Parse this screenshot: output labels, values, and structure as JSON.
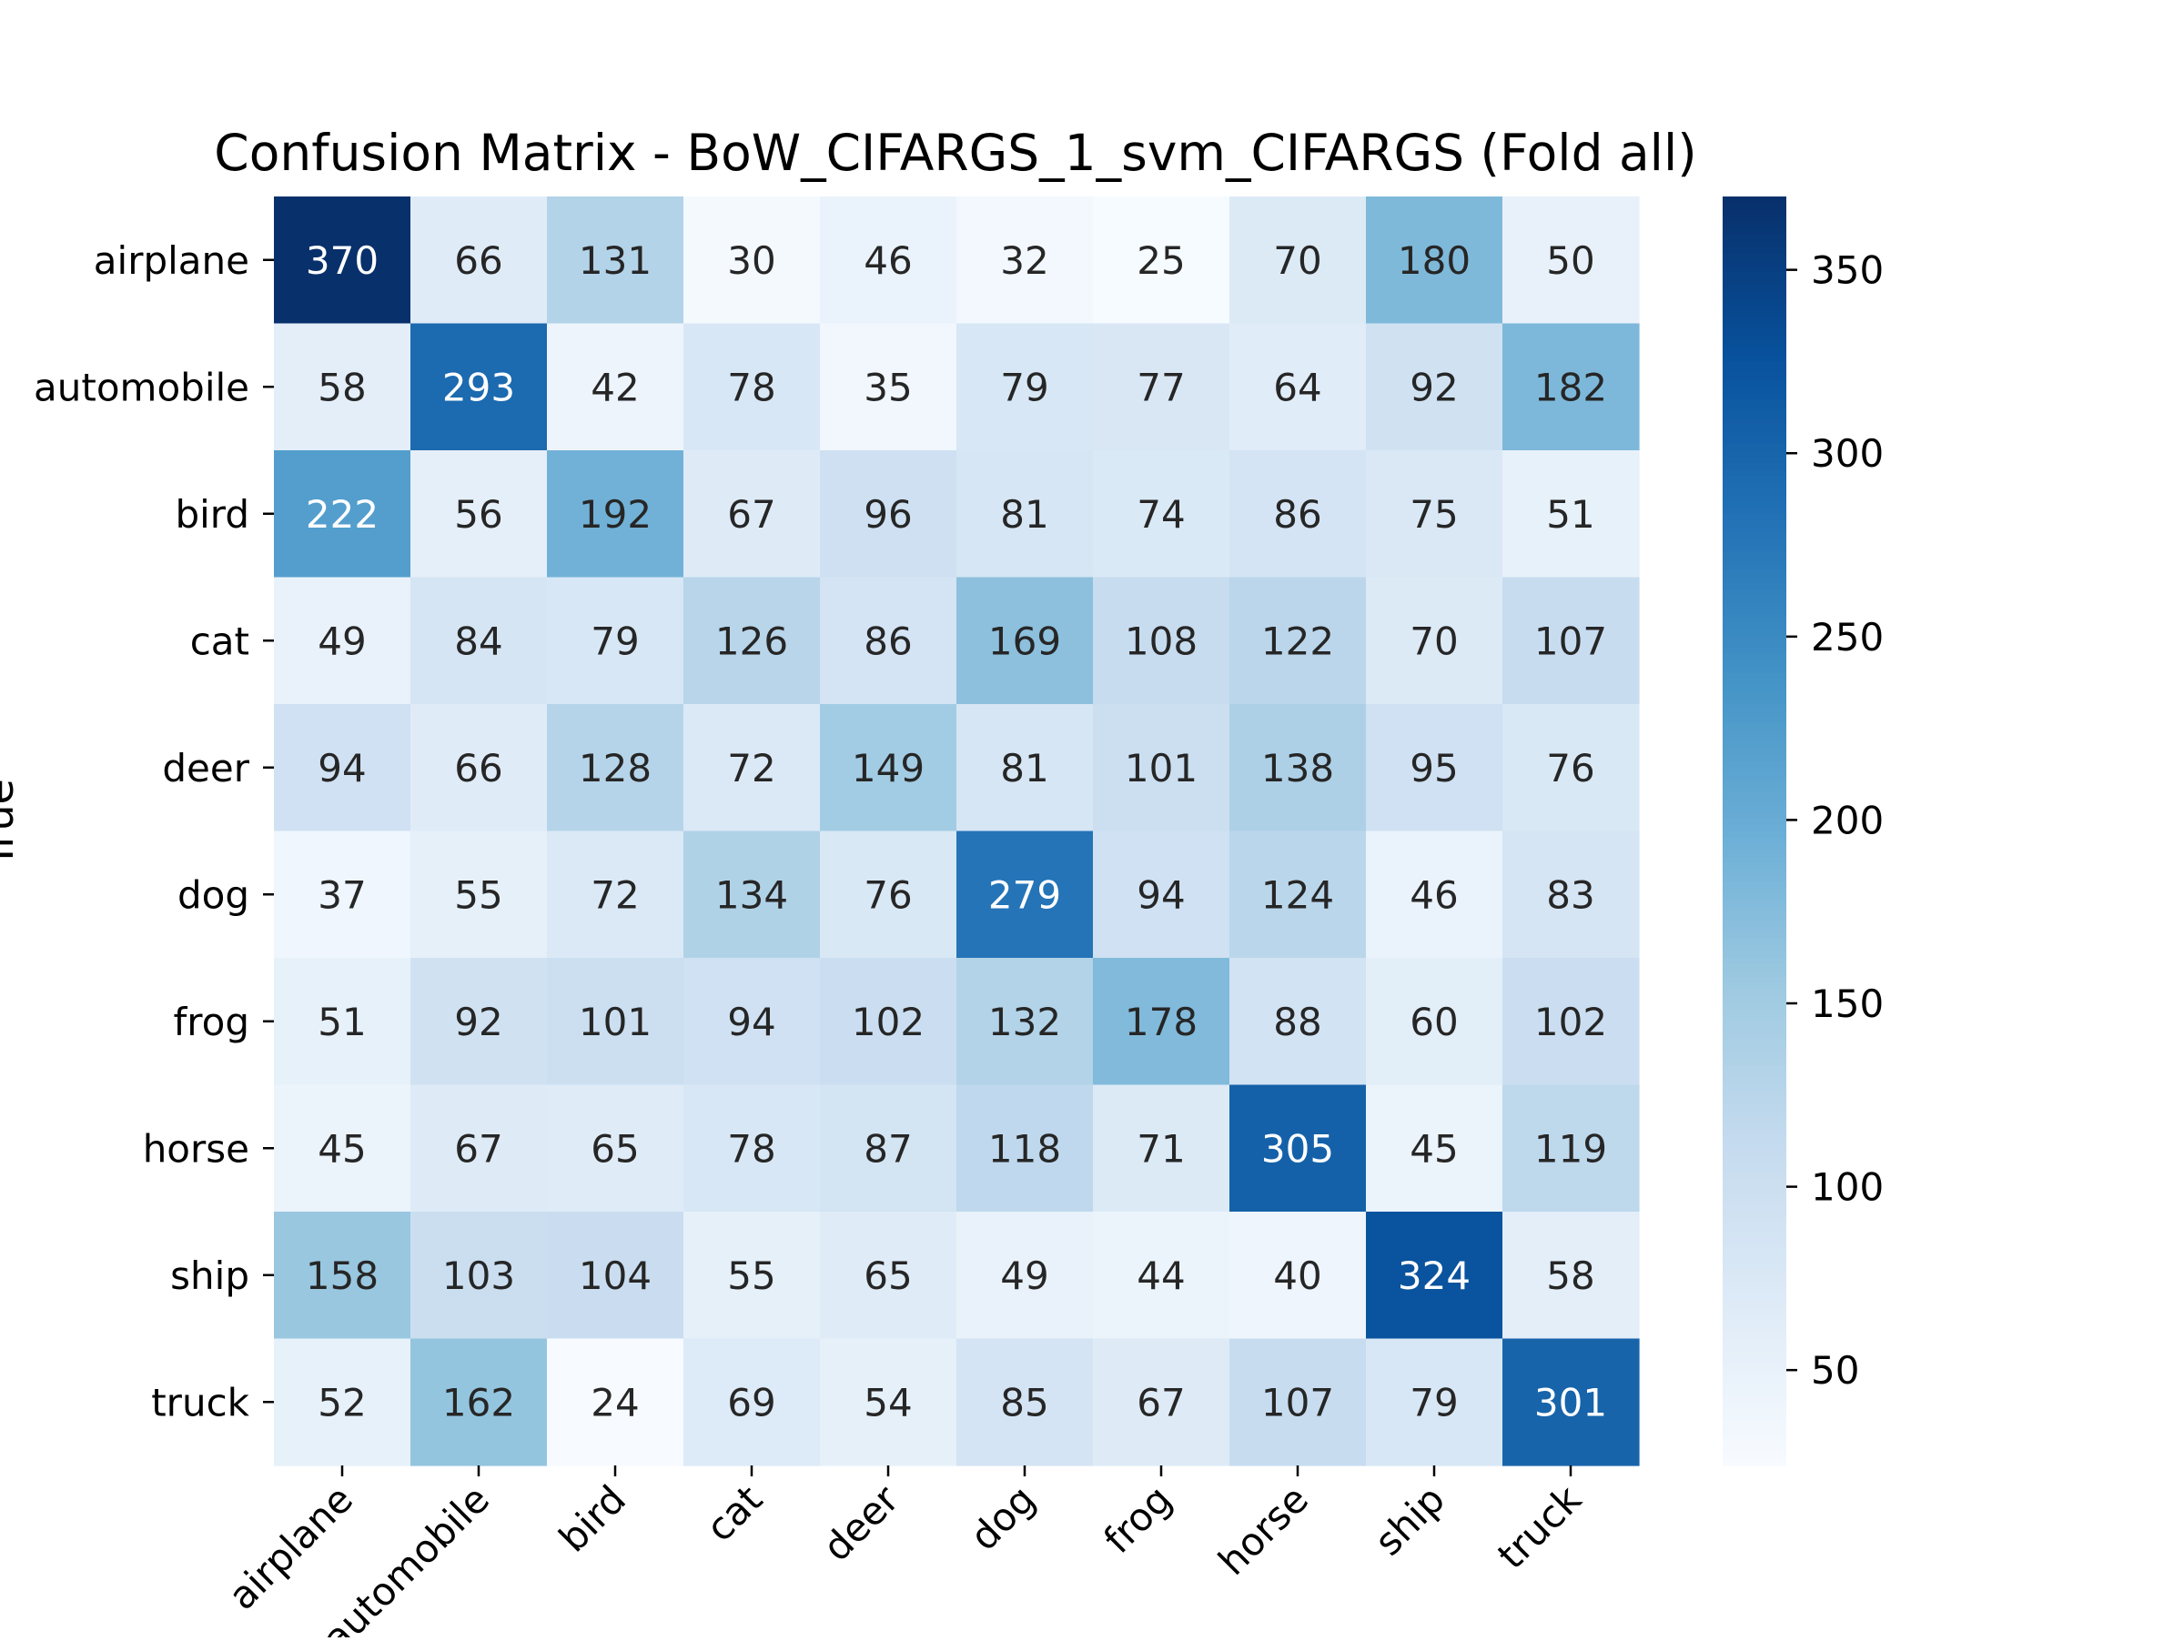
{
  "chart_data": {
    "type": "heatmap",
    "title": "Confusion Matrix - BoW_CIFARGS_1_svm_CIFARGS (Fold all)",
    "ylabel": "True",
    "xlabel": "",
    "rows": [
      "airplane",
      "automobile",
      "bird",
      "cat",
      "deer",
      "dog",
      "frog",
      "horse",
      "ship",
      "truck"
    ],
    "columns": [
      "airplane",
      "automobile",
      "bird",
      "cat",
      "deer",
      "dog",
      "frog",
      "horse",
      "ship",
      "truck"
    ],
    "values": [
      [
        370,
        66,
        131,
        30,
        46,
        32,
        25,
        70,
        180,
        50
      ],
      [
        58,
        293,
        42,
        78,
        35,
        79,
        77,
        64,
        92,
        182
      ],
      [
        222,
        56,
        192,
        67,
        96,
        81,
        74,
        86,
        75,
        51
      ],
      [
        49,
        84,
        79,
        126,
        86,
        169,
        108,
        122,
        70,
        107
      ],
      [
        94,
        66,
        128,
        72,
        149,
        81,
        101,
        138,
        95,
        76
      ],
      [
        37,
        55,
        72,
        134,
        76,
        279,
        94,
        124,
        46,
        83
      ],
      [
        51,
        92,
        101,
        94,
        102,
        132,
        178,
        88,
        60,
        102
      ],
      [
        45,
        67,
        65,
        78,
        87,
        118,
        71,
        305,
        45,
        119
      ],
      [
        158,
        103,
        104,
        55,
        65,
        49,
        44,
        40,
        324,
        58
      ],
      [
        52,
        162,
        24,
        69,
        54,
        85,
        67,
        107,
        79,
        301
      ]
    ],
    "colormap": "Blues",
    "vmin": 24,
    "vmax": 370,
    "colorbar_ticks": [
      50,
      100,
      150,
      200,
      250,
      300,
      350
    ],
    "grid": false,
    "legend": "colorbar-right"
  }
}
